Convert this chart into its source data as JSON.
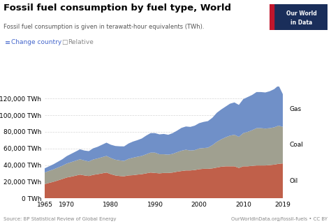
{
  "title": "Fossil fuel consumption by fuel type, World",
  "subtitle": "Fossil fuel consumption is given in terawatt-hour equivalents (TWh).",
  "source_left": "Source: BP Statistical Review of Global Energy",
  "source_right": "OurWorldInData.org/fossil-fuels • CC BY",
  "legend_items": [
    "Change country",
    "Relative"
  ],
  "years": [
    1965,
    1966,
    1967,
    1968,
    1969,
    1970,
    1971,
    1972,
    1973,
    1974,
    1975,
    1976,
    1977,
    1978,
    1979,
    1980,
    1981,
    1982,
    1983,
    1984,
    1985,
    1986,
    1987,
    1988,
    1989,
    1990,
    1991,
    1992,
    1993,
    1994,
    1995,
    1996,
    1997,
    1998,
    1999,
    2000,
    2001,
    2002,
    2003,
    2004,
    2005,
    2006,
    2007,
    2008,
    2009,
    2010,
    2011,
    2012,
    2013,
    2014,
    2015,
    2016,
    2017,
    2018,
    2019
  ],
  "oil": [
    17000,
    18500,
    19800,
    21500,
    23200,
    25000,
    26000,
    27200,
    28500,
    27500,
    26800,
    28200,
    29000,
    30000,
    31000,
    29000,
    27500,
    26800,
    26500,
    27500,
    27800,
    28500,
    29000,
    30000,
    31000,
    30500,
    30000,
    30500,
    30500,
    31000,
    32000,
    32800,
    33500,
    33500,
    34000,
    35000,
    35500,
    35500,
    36000,
    37000,
    38000,
    38500,
    38500,
    38500,
    36500,
    38500,
    38500,
    39000,
    39500,
    39500,
    39500,
    40000,
    40500,
    41500,
    42000
  ],
  "coal": [
    14000,
    14500,
    15000,
    15500,
    16000,
    16800,
    17500,
    18000,
    18500,
    18000,
    17500,
    18500,
    19000,
    19500,
    20000,
    19500,
    19000,
    18800,
    18500,
    20000,
    21000,
    21500,
    22000,
    23000,
    24000,
    24500,
    23000,
    22500,
    22000,
    22500,
    23500,
    24500,
    25000,
    24000,
    24000,
    25000,
    25000,
    25500,
    28000,
    31000,
    33000,
    35000,
    37000,
    38000,
    37500,
    40000,
    41500,
    43000,
    45000,
    45000,
    44500,
    44500,
    45000,
    46000,
    44000
  ],
  "gas": [
    5000,
    5500,
    6200,
    7000,
    7800,
    9000,
    10000,
    11000,
    12000,
    12000,
    12500,
    13500,
    14000,
    15000,
    16000,
    16000,
    16500,
    17000,
    17500,
    18500,
    19500,
    20000,
    21000,
    22500,
    23500,
    23500,
    24000,
    24500,
    24000,
    25000,
    26000,
    27500,
    28000,
    28500,
    29500,
    30500,
    31500,
    32000,
    33000,
    35000,
    36000,
    37000,
    38500,
    39000,
    38500,
    41000,
    42000,
    42500,
    43500,
    43500,
    43500,
    44500,
    46000,
    48500,
    39000
  ],
  "oil_color": "#c0604a",
  "coal_color": "#a0a090",
  "gas_color": "#7090c8",
  "background_color": "#ffffff",
  "grid_color": "#cccccc",
  "yticks": [
    0,
    20000,
    40000,
    60000,
    80000,
    100000,
    120000
  ],
  "xticks": [
    1965,
    1970,
    1980,
    1990,
    2000,
    2010,
    2019
  ],
  "logo_bg": "#1a2e5a",
  "logo_accent": "#c0162c",
  "logo_text_line1": "Our World",
  "logo_text_line2": "in Data"
}
